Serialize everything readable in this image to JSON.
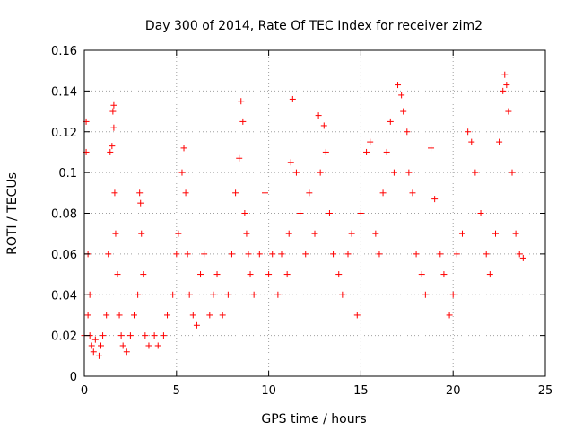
{
  "chart_data": {
    "type": "scatter",
    "title": "Day 300 of 2014, Rate Of TEC Index for receiver zim2",
    "xlabel": "GPS time / hours",
    "ylabel": "ROTI / TECUs",
    "xlim": [
      0,
      25
    ],
    "ylim": [
      0,
      0.16
    ],
    "x_ticks": [
      0,
      5,
      10,
      15,
      20,
      25
    ],
    "y_ticks": [
      0,
      0.02,
      0.04,
      0.06,
      0.08,
      0.1,
      0.12,
      0.14,
      0.16
    ],
    "y_tick_labels": [
      "0",
      "0.02",
      "0.04",
      "0.06",
      "0.08",
      "0.1",
      "0.12",
      "0.14",
      "0.16"
    ],
    "grid": true,
    "legend": "none",
    "marker": "+",
    "color": "#ff0000",
    "series": [
      {
        "x": [
          0.0,
          0.1,
          0.1,
          0.2,
          0.2,
          0.3,
          0.3,
          0.4,
          0.5,
          0.6,
          0.8,
          0.9,
          1.0,
          1.2,
          1.3,
          1.4,
          1.5,
          1.55,
          1.6,
          1.6,
          1.65,
          1.7,
          1.8,
          1.9,
          2.0,
          2.1,
          2.3,
          2.5,
          2.7,
          2.9,
          3.0,
          3.05,
          3.1,
          3.2,
          3.3,
          3.5,
          3.8,
          4.0,
          4.3,
          4.5,
          4.8,
          5.0,
          5.1,
          5.3,
          5.4,
          5.5,
          5.6,
          5.7,
          5.9,
          6.1,
          6.3,
          6.5,
          6.8,
          7.0,
          7.2,
          7.5,
          7.8,
          8.0,
          8.2,
          8.4,
          8.5,
          8.6,
          8.7,
          8.8,
          8.9,
          9.0,
          9.2,
          9.5,
          9.8,
          10.0,
          10.2,
          10.5,
          10.7,
          11.0,
          11.1,
          11.2,
          11.3,
          11.5,
          11.7,
          12.0,
          12.2,
          12.5,
          12.7,
          12.8,
          13.0,
          13.1,
          13.3,
          13.5,
          13.8,
          14.0,
          14.3,
          14.5,
          14.8,
          15.0,
          15.3,
          15.5,
          15.8,
          16.0,
          16.2,
          16.4,
          16.6,
          16.8,
          17.0,
          17.2,
          17.3,
          17.5,
          17.6,
          17.8,
          18.0,
          18.3,
          18.5,
          18.8,
          19.0,
          19.3,
          19.5,
          19.8,
          20.0,
          20.2,
          20.5,
          20.8,
          21.0,
          21.2,
          21.5,
          21.8,
          22.0,
          22.3,
          22.5,
          22.7,
          22.8,
          22.9,
          23.0,
          23.2,
          23.4,
          23.6,
          23.8
        ],
        "y": [
          0.02,
          0.125,
          0.11,
          0.06,
          0.03,
          0.02,
          0.04,
          0.015,
          0.012,
          0.018,
          0.01,
          0.015,
          0.02,
          0.03,
          0.06,
          0.11,
          0.113,
          0.13,
          0.133,
          0.122,
          0.09,
          0.07,
          0.05,
          0.03,
          0.02,
          0.015,
          0.012,
          0.02,
          0.03,
          0.04,
          0.09,
          0.085,
          0.07,
          0.05,
          0.02,
          0.015,
          0.02,
          0.015,
          0.02,
          0.03,
          0.04,
          0.06,
          0.07,
          0.1,
          0.112,
          0.09,
          0.06,
          0.04,
          0.03,
          0.025,
          0.05,
          0.06,
          0.03,
          0.04,
          0.05,
          0.03,
          0.04,
          0.06,
          0.09,
          0.107,
          0.135,
          0.125,
          0.08,
          0.07,
          0.06,
          0.05,
          0.04,
          0.06,
          0.09,
          0.05,
          0.06,
          0.04,
          0.06,
          0.05,
          0.07,
          0.105,
          0.136,
          0.1,
          0.08,
          0.06,
          0.09,
          0.07,
          0.128,
          0.1,
          0.123,
          0.11,
          0.08,
          0.06,
          0.05,
          0.04,
          0.06,
          0.07,
          0.03,
          0.08,
          0.11,
          0.115,
          0.07,
          0.06,
          0.09,
          0.11,
          0.125,
          0.1,
          0.143,
          0.138,
          0.13,
          0.12,
          0.1,
          0.09,
          0.06,
          0.05,
          0.04,
          0.112,
          0.087,
          0.06,
          0.05,
          0.03,
          0.04,
          0.06,
          0.07,
          0.12,
          0.115,
          0.1,
          0.08,
          0.06,
          0.05,
          0.07,
          0.115,
          0.14,
          0.148,
          0.143,
          0.13,
          0.1,
          0.07,
          0.06,
          0.058
        ]
      }
    ]
  }
}
